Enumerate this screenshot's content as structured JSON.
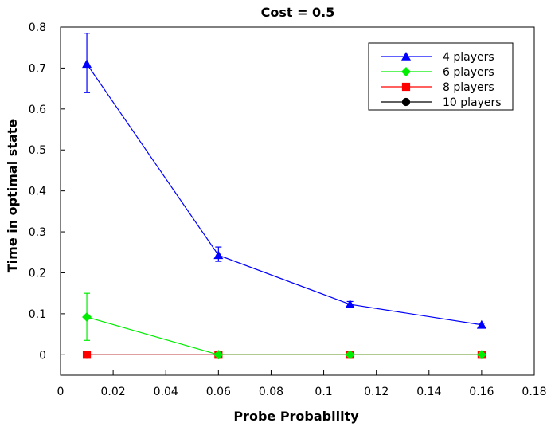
{
  "chart_data": {
    "type": "line",
    "title": "Cost = 0.5",
    "xlabel": "Probe Probability",
    "ylabel": "Time in optimal state",
    "xlim": [
      0,
      0.18
    ],
    "ylim": [
      -0.05,
      0.8
    ],
    "x_ticks": [
      0,
      0.02,
      0.04,
      0.06,
      0.08,
      0.1,
      0.12,
      0.14,
      0.16,
      0.18
    ],
    "x_tick_labels": [
      "0",
      "0.02",
      "0.04",
      "0.06",
      "0.08",
      "0.1",
      "0.12",
      "0.14",
      "0.16",
      "0.18"
    ],
    "y_ticks": [
      0,
      0.1,
      0.2,
      0.3,
      0.4,
      0.5,
      0.6,
      0.7,
      0.8
    ],
    "y_tick_labels": [
      "0",
      "0.1",
      "0.2",
      "0.3",
      "0.4",
      "0.5",
      "0.6",
      "0.7",
      "0.8"
    ],
    "grid": false,
    "legend_position": "top-right",
    "x": [
      0.01,
      0.06,
      0.11,
      0.16
    ],
    "series": [
      {
        "name": "4 players",
        "color": "#0000ff",
        "marker": "triangle",
        "values": [
          0.71,
          0.243,
          0.123,
          0.073
        ],
        "err_low": [
          0.64,
          0.228,
          0.117,
          0.07
        ],
        "err_high": [
          0.785,
          0.263,
          0.13,
          0.077
        ]
      },
      {
        "name": "6 players",
        "color": "#00ee00",
        "marker": "diamond",
        "values": [
          0.092,
          0.0,
          0.0,
          0.0
        ],
        "err_low": [
          0.035,
          0.0,
          0.0,
          0.0
        ],
        "err_high": [
          0.15,
          0.0,
          0.0,
          0.0
        ]
      },
      {
        "name": "8 players",
        "color": "#ff0000",
        "marker": "square",
        "values": [
          0.0,
          0.0,
          0.0,
          0.0
        ]
      },
      {
        "name": "10 players",
        "color": "#000000",
        "marker": "circle",
        "values": [
          0.0,
          0.0,
          0.0,
          0.0
        ]
      }
    ]
  }
}
